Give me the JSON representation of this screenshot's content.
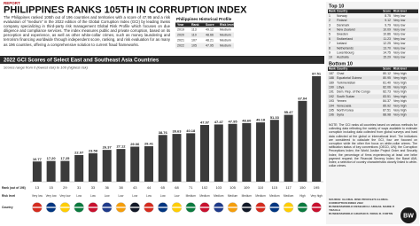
{
  "header": {
    "kicker": "REPORT",
    "title": "PHILIPPINES RANKS 105TH IN CORRUPTION INDEX"
  },
  "intro": "The Philippines ranked 105th out of 196 countries and territories with a score of 47.95 and a risk evaluation of \"medium\" in the 2022 edition of the Global Corruption Index (GCI) by leading Swiss company specializing in third-party risk management Global Risk Profile which focuses on due diligence and compliance services. The index measures public and private corruption, based on its perception and experience, as well as other white-collar crimes, such as money laundering and terrorism financing worldwide through independent score, ranking, and risk evaluation for as many as 196 countries, offering a comprehensive solution to current fraud frameworks.",
  "historical_profile": {
    "title": "Philippines Historical Profile",
    "columns": [
      "Year",
      "Rank",
      "Score",
      "Risk level"
    ],
    "rows": [
      [
        "2019",
        "113",
        "49.12",
        "Medium"
      ],
      [
        "2020",
        "110",
        "48.66",
        "Medium"
      ],
      [
        "2021",
        "107",
        "48.21",
        "Medium"
      ],
      [
        "2022",
        "105",
        "47.95",
        "Medium"
      ]
    ]
  },
  "chart_data": {
    "type": "bar",
    "title": "2022 GCI Scores of Select East and Southeast Asia Countries",
    "subtitle": "Scores range from 0 (lowest risk) to 100 (highest risk)",
    "row_labels": [
      "Rank (out of 196)",
      "Risk level",
      "Country"
    ],
    "categories": [
      "13",
      "15",
      "29",
      "31",
      "33",
      "36",
      "38",
      "43",
      "44",
      "65",
      "68",
      "71",
      "102",
      "103",
      "105",
      "109",
      "110",
      "115",
      "117",
      "150",
      "195"
    ],
    "values": [
      16.77,
      17.2,
      17.25,
      22.07,
      23.58,
      26.37,
      27.12,
      29.06,
      29.41,
      38.76,
      39.63,
      40.18,
      47.07,
      47.47,
      47.95,
      48.6,
      49.18,
      51.33,
      55.47,
      67.04,
      87.51
    ],
    "value_labels": [
      "16.77",
      "17.20",
      "17.25",
      "22.07",
      "23.58",
      "26.37",
      "27.12",
      "29.06",
      "29.41",
      "38.76",
      "39.63",
      "40.18",
      "47.07",
      "47.47",
      "47.95",
      "48.60",
      "49.18",
      "51.33",
      "55.47",
      "67.04",
      "87.51"
    ],
    "risk_levels": [
      "Very low",
      "Very low",
      "Very low",
      "Low",
      "Low",
      "Low",
      "Low",
      "Low",
      "Low",
      "Low",
      "Low",
      "Medium",
      "Medium",
      "Medium",
      "Medium",
      "Medium",
      "Medium",
      "Medium",
      "Medium",
      "High",
      "Very high"
    ],
    "color": "#3b3b3b"
  },
  "top10": {
    "title": "Top 10",
    "columns": [
      "Rank",
      "Country",
      "Score",
      "Risk level"
    ],
    "rows": [
      [
        "1",
        "Norway",
        "8.75",
        "Very low"
      ],
      [
        "2",
        "Finland",
        "9.12",
        "Very low"
      ],
      [
        "3",
        "Denmark",
        "9.79",
        "Very low"
      ],
      [
        "4",
        "New Zealand",
        "10.09",
        "Very low"
      ],
      [
        "5",
        "Sweden",
        "10.86",
        "Very low"
      ],
      [
        "6",
        "Switzerland",
        "11.23",
        "Very low"
      ],
      [
        "7",
        "Iceland",
        "12.25",
        "Very low"
      ],
      [
        "8",
        "Netherlands",
        "13.70",
        "Very low"
      ],
      [
        "9",
        "Luxembourg",
        "14.75",
        "Very low"
      ],
      [
        "10",
        "Australia",
        "15.29",
        "Very low"
      ]
    ]
  },
  "bottom10": {
    "title": "Bottom 10",
    "columns": [
      "Rank",
      "Country",
      "Score",
      "Risk level"
    ],
    "rows": [
      [
        "187",
        "Chad",
        "80.12",
        "Very high"
      ],
      [
        "188",
        "Equatorial Guinea",
        "80.95",
        "Very high"
      ],
      [
        "189",
        "Turkmenistan",
        "81.40",
        "Very high"
      ],
      [
        "190",
        "Libya",
        "82.06",
        "Very high"
      ],
      [
        "191",
        "Dem. Rep. of the Congo",
        "82.73",
        "Very high"
      ],
      [
        "192",
        "South Sudan",
        "83.51",
        "Very high"
      ],
      [
        "193",
        "Yemen",
        "84.37",
        "Very high"
      ],
      [
        "194",
        "Venezuela",
        "85.92",
        "Very high"
      ],
      [
        "195",
        "North Korea",
        "87.51",
        "Very high"
      ],
      [
        "196",
        "Syria",
        "88.98",
        "Very high"
      ]
    ]
  },
  "note": "NOTE: The GCI ranks all countries based on various methods for collecting data reflecting the variety of ways available to estimate corruption including data collected from global surveys and hard data collected at the global or international level. The indicators are considered to calculate the GCI, four are focused on corruption while the other five focus on white-collar crimes. The ratification status of key conventions (OECD, UN); the Corruption Perceptions Index; the World Justice Project Order and Security Index; the percentage of firms experiencing at least one bribe payment request; the Financial Secrecy Index; the Basel AML Index; a selection of country characteristics closely linked to white-collar crimes.",
  "credits": [
    "SOURCE: GLOBAL RISK PROFILE'S GLOBAL CORRUPTION INDEX 2022",
    "BUSINESSWORLD RESEARCH: ABIGAIL MARIE P. YRAOLA",
    "BUSINESSWORLD GRAPHICS: BONG R. FORTIN"
  ],
  "logo": "BW"
}
